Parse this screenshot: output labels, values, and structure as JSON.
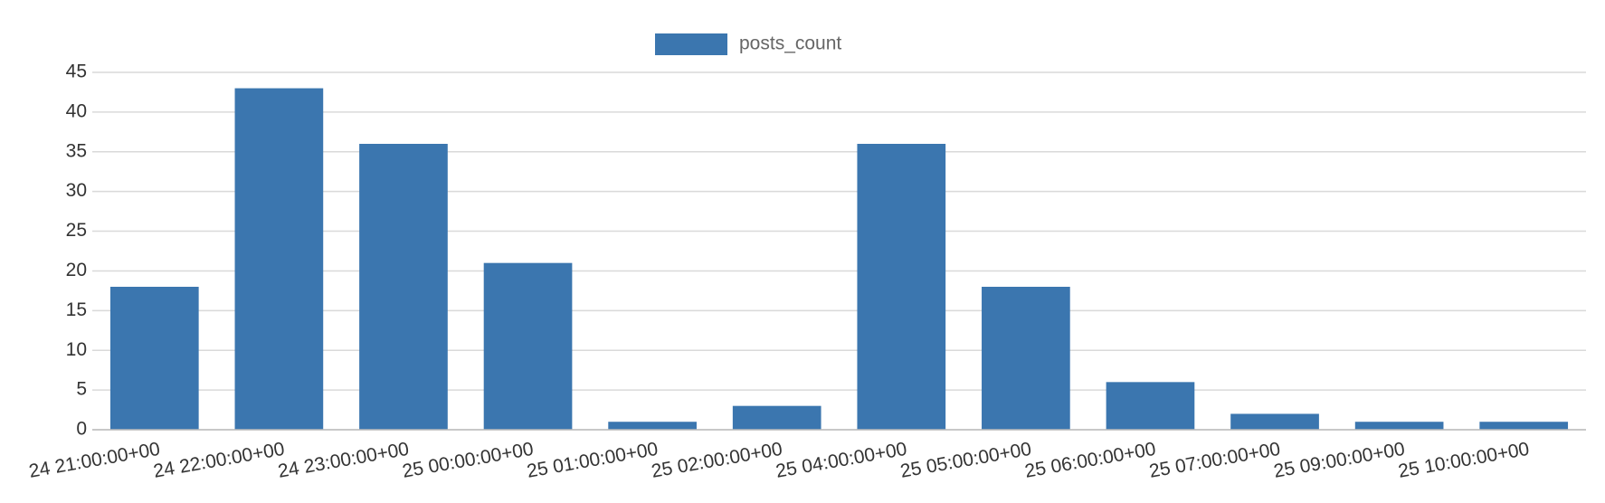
{
  "chart_data": {
    "type": "bar",
    "legend": "posts_count",
    "categories": [
      "24 21:00:00+00",
      "24 22:00:00+00",
      "24 23:00:00+00",
      "25 00:00:00+00",
      "25 01:00:00+00",
      "25 02:00:00+00",
      "25 04:00:00+00",
      "25 05:00:00+00",
      "25 06:00:00+00",
      "25 07:00:00+00",
      "25 09:00:00+00",
      "25 10:00:00+00"
    ],
    "values": [
      18,
      43,
      36,
      21,
      1,
      3,
      36,
      18,
      6,
      2,
      1,
      1
    ],
    "color": "#3b76af",
    "ylim": [
      0,
      45
    ],
    "yticks": [
      0,
      5,
      10,
      15,
      20,
      25,
      30,
      35,
      40,
      45
    ],
    "grid": true
  }
}
